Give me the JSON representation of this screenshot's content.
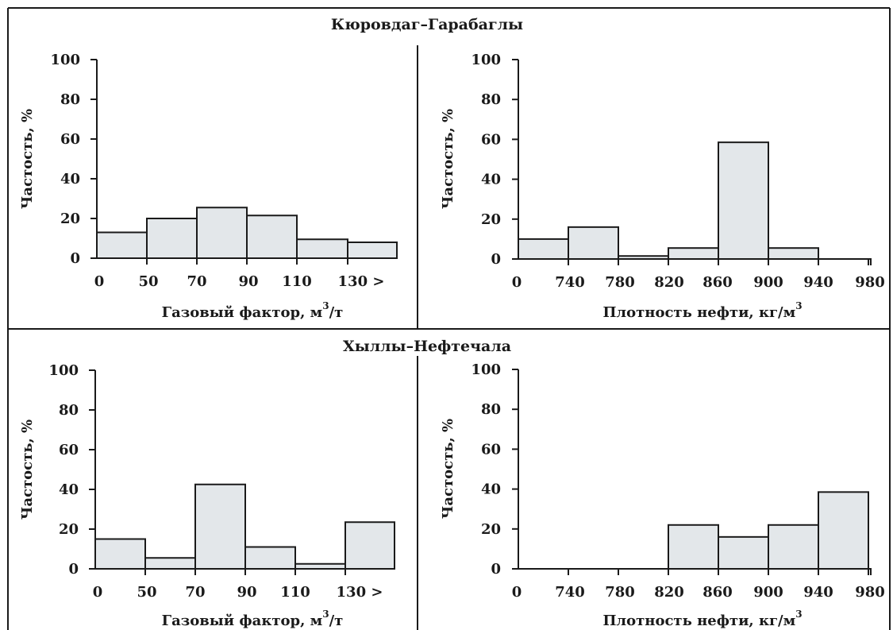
{
  "colors": {
    "bar_fill": "#e3e7ea",
    "line": "#1a1a1a",
    "background": "#ffffff"
  },
  "chart_data": [
    {
      "type": "bar",
      "group_title": "Кюровдаг–Гарабаглы",
      "xlabel": "Газовый фактор, м",
      "xlabel_sup": "3",
      "xlabel_suffix": "/т",
      "ylabel": "Частость, %",
      "ylim": [
        0,
        100
      ],
      "y_ticks": [
        "0",
        "20",
        "40",
        "60",
        "80",
        "100"
      ],
      "x_ticks": [
        "0",
        "50",
        "70",
        "90",
        "110",
        "130 >"
      ],
      "categories": [
        "0–50",
        "50–70",
        "70–90",
        "90–110",
        "110–130",
        ">130"
      ],
      "values": [
        13,
        20,
        25.5,
        21.5,
        9.5,
        8
      ]
    },
    {
      "type": "bar",
      "xlabel": "Плотность нефти, кг/м",
      "xlabel_sup": "3",
      "xlabel_suffix": "",
      "ylabel": "Частость, %",
      "ylim": [
        0,
        100
      ],
      "y_ticks": [
        "0",
        "20",
        "40",
        "60",
        "80",
        "100"
      ],
      "x_ticks": [
        "0",
        "740",
        "780",
        "820",
        "860",
        "900",
        "940",
        "980"
      ],
      "categories": [
        "0–740",
        "740–780",
        "780–820",
        "820–860",
        "860–900",
        "900–940",
        "940–980"
      ],
      "values": [
        10,
        16,
        1.5,
        5.5,
        58.5,
        5.5,
        0
      ]
    },
    {
      "type": "bar",
      "group_title": "Хыллы–Нефтечала",
      "xlabel": "Газовый фактор, м",
      "xlabel_sup": "3",
      "xlabel_suffix": "/т",
      "ylabel": "Частость, %",
      "ylim": [
        0,
        100
      ],
      "y_ticks": [
        "0",
        "20",
        "40",
        "60",
        "80",
        "100"
      ],
      "x_ticks": [
        "0",
        "50",
        "70",
        "90",
        "110",
        "130 >"
      ],
      "categories": [
        "0–50",
        "50–70",
        "70–90",
        "90–110",
        "110–130",
        ">130"
      ],
      "values": [
        15,
        5.5,
        42.5,
        11,
        2.5,
        23.5
      ]
    },
    {
      "type": "bar",
      "xlabel": "Плотность нефти, кг/м",
      "xlabel_sup": "3",
      "xlabel_suffix": "",
      "ylabel": "Частость, %",
      "ylim": [
        0,
        100
      ],
      "y_ticks": [
        "0",
        "20",
        "40",
        "60",
        "80",
        "100"
      ],
      "x_ticks": [
        "0",
        "740",
        "780",
        "820",
        "860",
        "900",
        "940",
        "980"
      ],
      "categories": [
        "0–740",
        "740–780",
        "780–820",
        "820–860",
        "860–900",
        "900–940",
        "940–980"
      ],
      "values": [
        0,
        0,
        0,
        22,
        16,
        22,
        38.5
      ]
    }
  ]
}
